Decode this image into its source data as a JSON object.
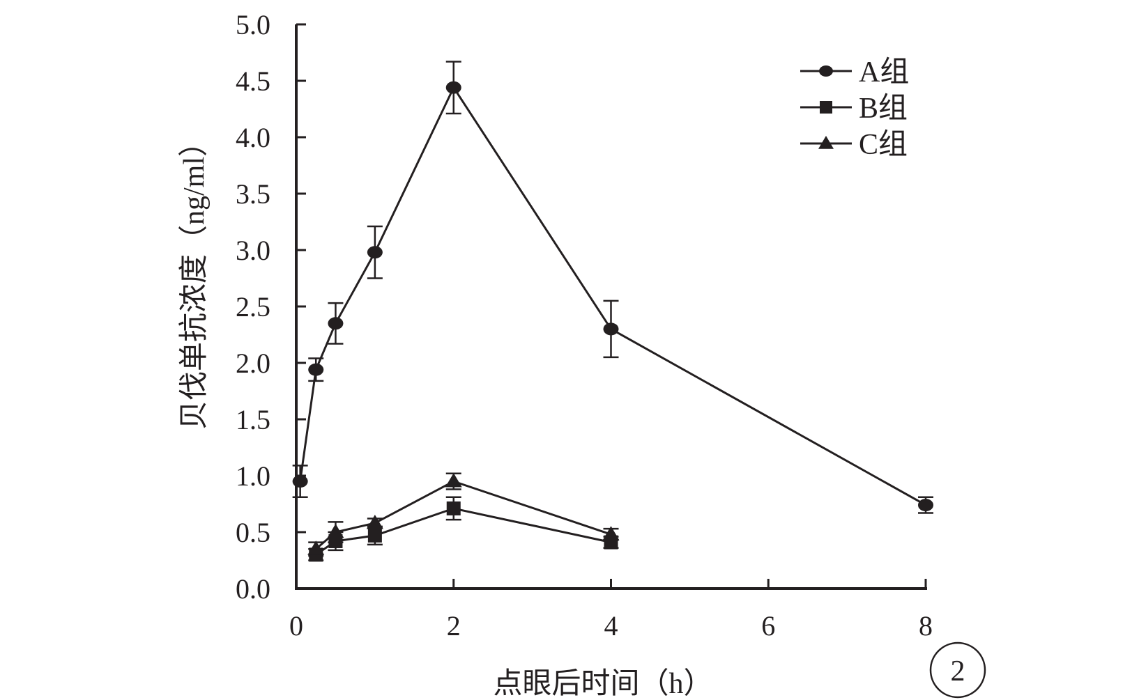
{
  "chart_data": {
    "type": "line",
    "xlabel": "点眼后时间（h）",
    "ylabel": "贝伐单抗浓度（ng/ml）",
    "xlim": [
      0,
      8
    ],
    "ylim": [
      0,
      5
    ],
    "x_ticks": [
      "0",
      "2",
      "4",
      "6",
      "8"
    ],
    "y_ticks": [
      "0.0",
      "0.5",
      "1.0",
      "1.5",
      "2.0",
      "2.5",
      "3.0",
      "3.5",
      "4.0",
      "4.5",
      "5.0"
    ],
    "grid": false,
    "legend_position": "top-right",
    "panel_label": "2",
    "series": [
      {
        "name": "A组",
        "marker": "circle",
        "x": [
          0.05,
          0.25,
          0.5,
          1,
          2,
          4,
          8
        ],
        "y": [
          0.95,
          1.94,
          2.35,
          2.98,
          4.44,
          2.3,
          0.74
        ],
        "err": [
          0.14,
          0.1,
          0.18,
          0.23,
          0.23,
          0.25,
          0.07
        ]
      },
      {
        "name": "B组",
        "marker": "square",
        "x": [
          0.25,
          0.5,
          1,
          2,
          4
        ],
        "y": [
          0.3,
          0.42,
          0.47,
          0.71,
          0.41
        ],
        "err": [
          0.05,
          0.08,
          0.08,
          0.1,
          0.05
        ]
      },
      {
        "name": "C组",
        "marker": "triangle",
        "x": [
          0.25,
          0.5,
          1,
          2,
          4
        ],
        "y": [
          0.35,
          0.5,
          0.58,
          0.95,
          0.48
        ],
        "err": [
          0.06,
          0.09,
          0.04,
          0.07,
          0.05
        ]
      }
    ]
  },
  "colors": {
    "ink": "#231f20",
    "background": "#ffffff"
  }
}
